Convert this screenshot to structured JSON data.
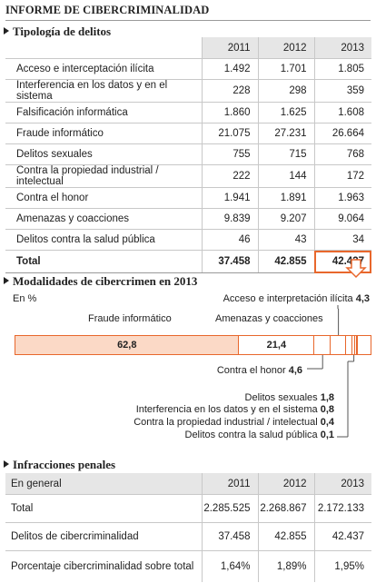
{
  "header": {
    "title": "INFORME DE CIBERCRIMINALIDAD"
  },
  "colors": {
    "accent": "#e8672c",
    "fill": "#fbd9c6",
    "grid": "#c8c8c8",
    "header_bg": "#e6e6e6"
  },
  "tipologia": {
    "title": "Tipología de delitos",
    "years": [
      "2011",
      "2012",
      "2013"
    ],
    "rows": [
      {
        "label": "Acceso e interceptación ilícita",
        "v": [
          "1.492",
          "1.701",
          "1.805"
        ]
      },
      {
        "label": "Interferencia en los datos y en el sistema",
        "v": [
          "228",
          "298",
          "359"
        ]
      },
      {
        "label": "Falsificación informática",
        "v": [
          "1.860",
          "1.625",
          "1.608"
        ]
      },
      {
        "label": "Fraude informático",
        "v": [
          "21.075",
          "27.231",
          "26.664"
        ]
      },
      {
        "label": "Delitos sexuales",
        "v": [
          "755",
          "715",
          "768"
        ]
      },
      {
        "label": "Contra la propiedad industrial / intelectual",
        "v": [
          "222",
          "144",
          "172"
        ]
      },
      {
        "label": "Contra el honor",
        "v": [
          "1.941",
          "1.891",
          "1.963"
        ]
      },
      {
        "label": "Amenazas y coacciones",
        "v": [
          "9.839",
          "9.207",
          "9.064"
        ]
      },
      {
        "label": "Delitos contra la salud pública",
        "v": [
          "46",
          "43",
          "34"
        ]
      }
    ],
    "total": {
      "label": "Total",
      "v": [
        "37.458",
        "42.855",
        "42.437"
      ]
    }
  },
  "modalidades": {
    "title": "Modalidades de cibercrimen en 2013",
    "unit": "En %"
  },
  "chart_data": {
    "type": "bar",
    "orientation": "horizontal-stacked",
    "title": "Modalidades de cibercrimen en 2013",
    "unit": "En %",
    "categories": [
      "Fraude informático",
      "Amenazas y coacciones",
      "Contra el honor",
      "Acceso e interpretación ilícita",
      "Delitos sexuales",
      "Interferencia en los datos y en el sistema",
      "Contra la propiedad industrial / intelectual",
      "Delitos contra la salud pública"
    ],
    "values": [
      62.8,
      21.4,
      4.6,
      4.3,
      1.8,
      0.8,
      0.4,
      0.1
    ],
    "value_labels": [
      "62,8",
      "21,4",
      "4,6",
      "4,3",
      "1,8",
      "0,8",
      "0,4",
      "0,1"
    ],
    "xlim": [
      0,
      100
    ]
  },
  "infracciones": {
    "title": "Infracciones penales",
    "corner": "En general",
    "years": [
      "2011",
      "2012",
      "2013"
    ],
    "rows": [
      {
        "label": "Total",
        "v": [
          "2.285.525",
          "2.268.867",
          "2.172.133"
        ]
      },
      {
        "label": "Delitos de cibercriminalidad",
        "v": [
          "37.458",
          "42.855",
          "42.437"
        ]
      },
      {
        "label": "Porcentaje cibercriminalidad sobre total",
        "v": [
          "1,64%",
          "1,89%",
          "1,95%"
        ]
      }
    ]
  }
}
